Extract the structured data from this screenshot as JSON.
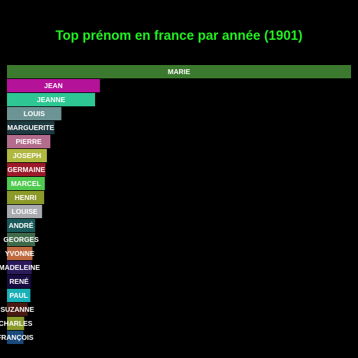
{
  "chart_data": {
    "type": "bar",
    "orientation": "horizontal",
    "title": "Top prénom en france par année (1901)",
    "xlabel": "",
    "ylabel": "",
    "grid": false,
    "legend": "none",
    "colors": {
      "background": "#000000",
      "title": "#22ee22",
      "label": "#ffffff"
    },
    "categories": [
      "MARIE",
      "JEAN",
      "JEANNE",
      "LOUIS",
      "MARGUERITE",
      "PIERRE",
      "JOSEPH",
      "GERMAINE",
      "MARCEL",
      "HENRI",
      "LOUISE",
      "ANDRÉ",
      "GEORGES",
      "YVONNE",
      "MADELEINE",
      "RENÉ",
      "PAUL",
      "SUZANNE",
      "CHARLES",
      "FRANÇOIS"
    ],
    "values": [
      1.0,
      0.27,
      0.256,
      0.158,
      0.138,
      0.126,
      0.116,
      0.112,
      0.11,
      0.108,
      0.102,
      0.082,
      0.082,
      0.074,
      0.072,
      0.07,
      0.068,
      0.06,
      0.05,
      0.048
    ],
    "bar_colors": [
      "#3b7a2e",
      "#b5129a",
      "#2ec794",
      "#6d9494",
      "#1e3a40",
      "#b46c8c",
      "#b0b840",
      "#9c1a2a",
      "#4fca4f",
      "#8c9a2a",
      "#a8aab0",
      "#1a5a5a",
      "#3f6a4a",
      "#c06a40",
      "#2a1a5a",
      "#180c40",
      "#1ab0b8",
      "#4a1a12",
      "#8a9a2a",
      "#1a4a7a"
    ]
  }
}
